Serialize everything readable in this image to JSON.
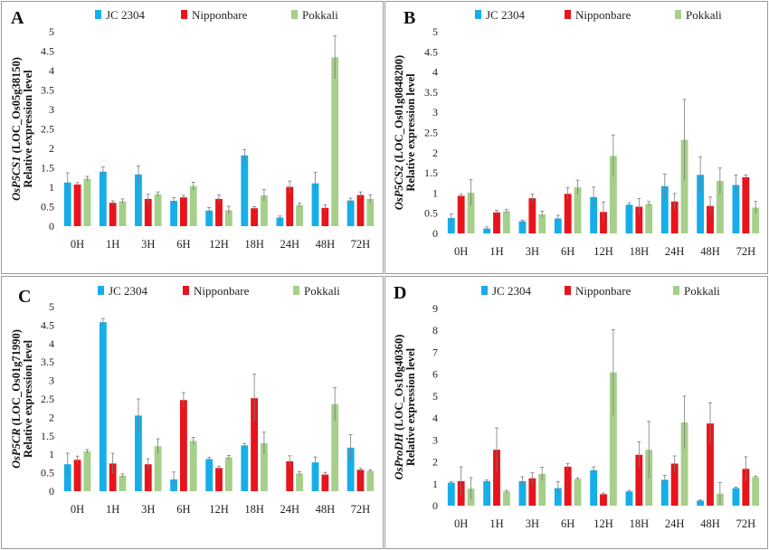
{
  "colors": {
    "JC 2304": "#16aee9",
    "Nipponbare": "#e8141b",
    "Pokkali": "#a6cf8b"
  },
  "chart_data": [
    {
      "panel": "A",
      "type": "bar",
      "gene": "OsP5CS1",
      "gene_id": "(LOC_Os05g38150)",
      "ylabel": "Relative expression level",
      "ylim": [
        0,
        5
      ],
      "yticks": [
        0,
        0.5,
        1,
        1.5,
        2,
        2.5,
        3,
        3.5,
        4,
        4.5,
        5
      ],
      "categories": [
        "0H",
        "1H",
        "3H",
        "6H",
        "12H",
        "18H",
        "24H",
        "48H",
        "72H"
      ],
      "series": [
        {
          "name": "JC 2304",
          "values": [
            1.12,
            1.4,
            1.33,
            0.65,
            0.4,
            1.82,
            0.22,
            1.1,
            0.66
          ],
          "errors": [
            0.25,
            0.12,
            0.22,
            0.08,
            0.08,
            0.15,
            0.04,
            0.28,
            0.06
          ]
        },
        {
          "name": "Nipponbare",
          "values": [
            1.07,
            0.6,
            0.7,
            0.74,
            0.7,
            0.46,
            1.01,
            0.47,
            0.8
          ],
          "errors": [
            0.05,
            0.05,
            0.12,
            0.05,
            0.1,
            0.04,
            0.15,
            0.08,
            0.08
          ]
        },
        {
          "name": "Pokkali",
          "values": [
            1.22,
            0.64,
            0.82,
            1.03,
            0.41,
            0.79,
            0.54,
            4.34,
            0.7
          ],
          "errors": [
            0.06,
            0.06,
            0.06,
            0.1,
            0.1,
            0.15,
            0.05,
            0.55,
            0.1
          ]
        }
      ]
    },
    {
      "panel": "B",
      "type": "bar",
      "gene": "OsP5CS2",
      "gene_id": "(LOC_Os01g0848200)",
      "ylabel": "Relative expression level",
      "ylim": [
        0,
        5
      ],
      "yticks": [
        0,
        0.5,
        1,
        1.5,
        2,
        2.5,
        3,
        3.5,
        4,
        4.5,
        5
      ],
      "categories": [
        "0H",
        "1H",
        "3H",
        "6H",
        "12H",
        "18H",
        "24H",
        "48H",
        "72H"
      ],
      "series": [
        {
          "name": "JC 2304",
          "values": [
            0.38,
            0.12,
            0.3,
            0.37,
            0.9,
            0.71,
            1.17,
            1.45,
            1.2
          ],
          "errors": [
            0.1,
            0.04,
            0.03,
            0.08,
            0.25,
            0.05,
            0.3,
            0.45,
            0.25
          ]
        },
        {
          "name": "Nipponbare",
          "values": [
            0.93,
            0.52,
            0.87,
            0.98,
            0.53,
            0.66,
            0.79,
            0.68,
            1.39
          ],
          "errors": [
            0.04,
            0.05,
            0.1,
            0.15,
            0.25,
            0.2,
            0.2,
            0.22,
            0.06
          ]
        },
        {
          "name": "Pokkali",
          "values": [
            1.01,
            0.55,
            0.47,
            1.14,
            1.92,
            0.73,
            2.32,
            1.3,
            0.64
          ],
          "errors": [
            0.32,
            0.04,
            0.08,
            0.18,
            0.52,
            0.06,
            1.0,
            0.32,
            0.15
          ]
        }
      ]
    },
    {
      "panel": "C",
      "type": "bar",
      "gene": "OsP5CR",
      "gene_id": "(LOC_Os01g71990)",
      "ylabel": "Relative expression level",
      "ylim": [
        0,
        5
      ],
      "yticks": [
        0,
        0.5,
        1,
        1.5,
        2,
        2.5,
        3,
        3.5,
        4,
        4.5,
        5
      ],
      "categories": [
        "0H",
        "1H",
        "3H",
        "6H",
        "12H",
        "18H",
        "24H",
        "48H",
        "72H"
      ],
      "series": [
        {
          "name": "JC 2304",
          "values": [
            0.73,
            4.58,
            2.05,
            0.32,
            0.87,
            1.24,
            0.0,
            0.78,
            1.18
          ],
          "errors": [
            0.3,
            0.1,
            0.45,
            0.2,
            0.05,
            0.05,
            0.0,
            0.15,
            0.35
          ]
        },
        {
          "name": "Nipponbare",
          "values": [
            0.85,
            0.75,
            0.73,
            2.47,
            0.63,
            2.52,
            0.81,
            0.45,
            0.58
          ],
          "errors": [
            0.1,
            0.28,
            0.15,
            0.2,
            0.05,
            0.65,
            0.15,
            0.06,
            0.04
          ]
        },
        {
          "name": "Pokkali",
          "values": [
            1.08,
            0.42,
            1.22,
            1.36,
            0.92,
            1.3,
            0.48,
            2.36,
            0.55
          ],
          "errors": [
            0.05,
            0.05,
            0.2,
            0.1,
            0.05,
            0.3,
            0.05,
            0.45,
            0.03
          ]
        }
      ]
    },
    {
      "panel": "D",
      "type": "bar",
      "gene": "OsProDH",
      "gene_id": "(LOC_Os10g40360)",
      "ylabel": "Relative expression level",
      "ylim": [
        0,
        9
      ],
      "yticks": [
        0,
        1,
        2,
        3,
        4,
        5,
        6,
        7,
        8,
        9
      ],
      "categories": [
        "0H",
        "1H",
        "3H",
        "6H",
        "12H",
        "18H",
        "24H",
        "48H",
        "72H"
      ],
      "series": [
        {
          "name": "JC 2304",
          "values": [
            1.05,
            1.12,
            1.12,
            0.8,
            1.62,
            0.65,
            1.18,
            0.23,
            0.8
          ],
          "errors": [
            0.05,
            0.05,
            0.2,
            0.3,
            0.15,
            0.05,
            0.2,
            0.03,
            0.05
          ]
        },
        {
          "name": "Nipponbare",
          "values": [
            1.12,
            2.55,
            1.25,
            1.78,
            0.52,
            2.32,
            1.92,
            3.75,
            1.68
          ],
          "errors": [
            0.65,
            1.0,
            0.25,
            0.15,
            0.05,
            0.6,
            0.35,
            0.95,
            0.55
          ]
        },
        {
          "name": "Pokkali",
          "values": [
            0.78,
            0.65,
            1.45,
            1.22,
            6.08,
            2.55,
            3.8,
            0.55,
            1.3
          ],
          "errors": [
            0.5,
            0.05,
            0.3,
            0.05,
            1.95,
            1.3,
            1.2,
            0.5,
            0.05
          ]
        }
      ]
    }
  ]
}
